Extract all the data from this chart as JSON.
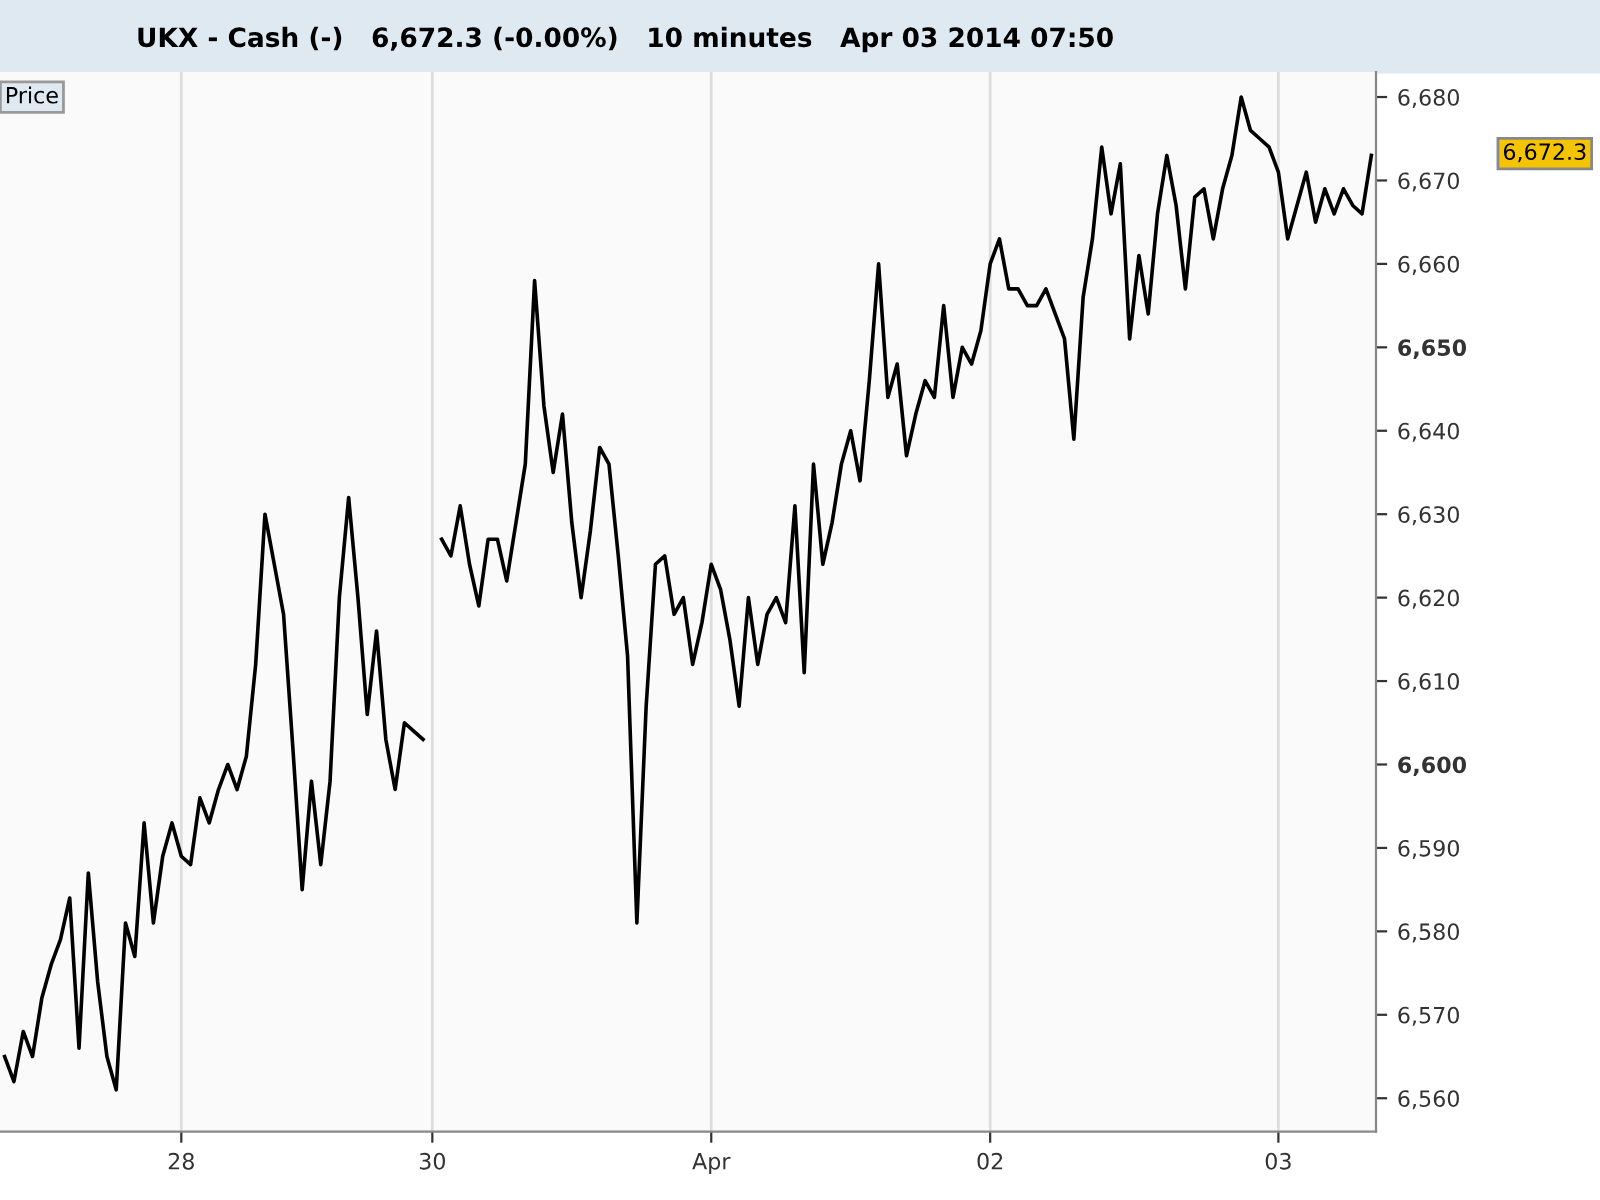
{
  "chart_data": {
    "type": "line",
    "title": "UKX - Cash (-)",
    "subtitle": "6,672.3 (-0.00%)   10 minutes   Apr 03 2014 07:50",
    "annotations": [
      "Price",
      "6,672.3"
    ],
    "ylim": [
      6556,
      6683
    ],
    "categories": [
      null,
      null,
      null,
      null,
      null,
      null,
      null,
      null,
      null,
      null,
      null,
      null,
      null,
      null,
      null,
      null,
      null,
      null,
      null,
      "28",
      null,
      null,
      null,
      null,
      null,
      null,
      null,
      null,
      null,
      null,
      null,
      null,
      null,
      null,
      null,
      null,
      null,
      null,
      null,
      null,
      null,
      null,
      null,
      null,
      null,
      null,
      "30",
      null,
      null,
      null,
      null,
      null,
      null,
      null,
      null,
      null,
      null,
      null,
      null,
      null,
      null,
      null,
      null,
      null,
      null,
      null,
      null,
      null,
      null,
      null,
      null,
      null,
      null,
      null,
      null,
      null,
      "Apr",
      null,
      null,
      null,
      null,
      null,
      null,
      null,
      null,
      null,
      null,
      null,
      null,
      null,
      null,
      null,
      null,
      null,
      null,
      null,
      null,
      null,
      null,
      null,
      null,
      null,
      null,
      null,
      null,
      null,
      "02",
      null,
      null,
      null,
      null,
      null,
      null,
      null,
      null,
      null,
      null,
      null,
      null,
      null,
      null,
      null,
      null,
      null,
      null,
      null,
      null,
      null,
      null,
      null,
      null,
      null,
      null,
      null,
      null,
      null,
      null,
      "03",
      null,
      null,
      null,
      null,
      null,
      null,
      null,
      null,
      null,
      null
    ],
    "yticks": [
      {
        "value": 6560,
        "label": "6,560"
      },
      {
        "value": 6570,
        "label": "6,570"
      },
      {
        "value": 6580,
        "label": "6,580"
      },
      {
        "value": 6590,
        "label": "6,590"
      },
      {
        "value": 6600,
        "label": "6,600"
      },
      {
        "value": 6610,
        "label": "6,610"
      },
      {
        "value": 6620,
        "label": "6,620"
      },
      {
        "value": 6630,
        "label": "6,630"
      },
      {
        "value": 6640,
        "label": "6,640"
      },
      {
        "value": 6650,
        "label": "6,650"
      },
      {
        "value": 6660,
        "label": "6,660"
      },
      {
        "value": 6670,
        "label": "6,670"
      },
      {
        "value": 6680,
        "label": "6,680"
      }
    ],
    "grid": "x",
    "marker": "none",
    "line_style": "solid",
    "series": [
      {
        "color": "#000000",
        "values": [
          6565,
          6562,
          6568,
          6565,
          6572,
          6576,
          6579,
          6584,
          6566,
          6587,
          6574,
          6565,
          6561,
          6581,
          6577,
          6593,
          6581,
          6589,
          6593,
          6589,
          6588,
          6596,
          6593,
          6597,
          6600,
          6597,
          6601,
          6612,
          6630,
          6624,
          6618,
          6602,
          6585,
          6598,
          6588,
          6598,
          6620,
          6632,
          6620,
          6606,
          6616,
          6603,
          6597,
          6605,
          6604,
          6603,
          null,
          6627,
          6625,
          6631,
          6624,
          6619,
          6627,
          6627,
          6622,
          6629,
          6636,
          6658,
          6643,
          6635,
          6642,
          6629,
          6620,
          6628,
          6638,
          6636,
          6625,
          6613,
          6581,
          6607,
          6624,
          6625,
          6618,
          6620,
          6612,
          6617,
          6624,
          6621,
          6615,
          6607,
          6620,
          6612,
          6618,
          6620,
          6617,
          6631,
          6611,
          6636,
          6624,
          6629,
          6636,
          6640,
          6634,
          6646,
          6660,
          6644,
          6648,
          6637,
          6642,
          6646,
          6644,
          6655,
          6644,
          6650,
          6648,
          6652,
          6660,
          6663,
          6657,
          6657,
          6655,
          6655,
          6657,
          6654,
          6651,
          6639,
          6656,
          6663,
          6674,
          6666,
          6672,
          6651,
          6661,
          6654,
          6666,
          6673,
          6667,
          6657,
          6668,
          6669,
          6663,
          6669,
          6673,
          6680,
          6676,
          6675,
          6674,
          6671,
          6663,
          6667,
          6671,
          6665,
          6669,
          6666,
          6669,
          6667,
          6666,
          6673
        ]
      }
    ]
  }
}
